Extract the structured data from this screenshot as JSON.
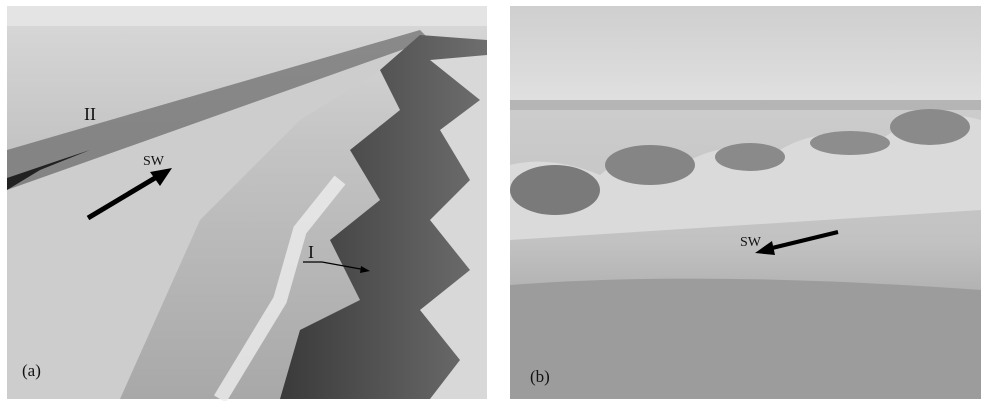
{
  "panels": [
    {
      "label": "(a)",
      "annotations": [
        "II",
        "SW",
        "I"
      ]
    },
    {
      "label": "(b)",
      "annotations": [
        "SW"
      ]
    }
  ]
}
